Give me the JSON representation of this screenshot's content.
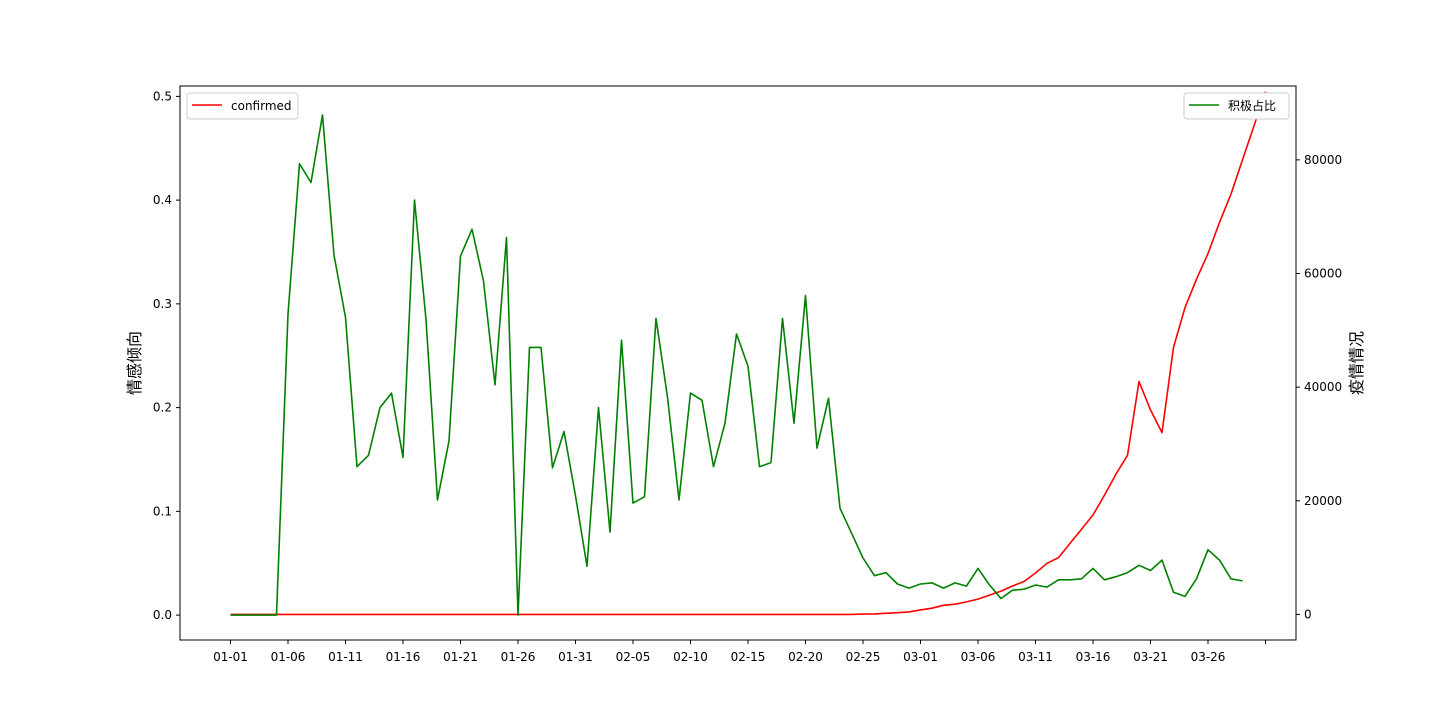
{
  "chart_data": {
    "type": "line",
    "x_tick_labels": [
      "01-01",
      "01-06",
      "01-11",
      "01-16",
      "01-21",
      "01-26",
      "01-31",
      "02-05",
      "02-10",
      "02-15",
      "02-20",
      "02-25",
      "03-01",
      "03-06",
      "03-11",
      "03-16",
      "03-21",
      "03-26"
    ],
    "y_left": {
      "label": "情感倾向",
      "lim": [
        -0.024,
        0.51
      ],
      "ticks": [
        "0.0",
        "0.1",
        "0.2",
        "0.3",
        "0.4",
        "0.5"
      ]
    },
    "y_right": {
      "label": "疫情情况",
      "lim": [
        -4500,
        93000
      ],
      "ticks": [
        "0",
        "20000",
        "40000",
        "60000",
        "80000"
      ]
    },
    "series": [
      {
        "name": "confirmed",
        "axis": "right",
        "color": "#ff0000",
        "values": [
          0,
          0,
          0,
          0,
          0,
          0,
          0,
          0,
          0,
          0,
          0,
          0,
          0,
          0,
          0,
          0,
          0,
          0,
          0,
          0,
          0,
          0,
          0,
          0,
          0,
          0,
          0,
          0,
          0,
          0,
          0,
          0,
          0,
          0,
          0,
          0,
          0,
          0,
          0,
          0,
          0,
          0,
          0,
          0,
          0,
          0,
          0,
          0,
          0,
          0,
          0,
          0,
          0,
          0,
          0,
          50,
          100,
          200,
          300,
          450,
          800,
          1100,
          1600,
          1800,
          2200,
          2700,
          3400,
          4100,
          5000,
          5800,
          7300,
          9000,
          10000,
          12500,
          15000,
          17500,
          21000,
          24700,
          28000,
          41000,
          36000,
          32000,
          47000,
          54000,
          59000,
          63500,
          69000,
          74000,
          80000,
          86000,
          92000
        ]
      },
      {
        "name": "积极占比",
        "axis": "left",
        "color": "#008000",
        "values": [
          0,
          0,
          0,
          0,
          0,
          0.29,
          0.435,
          0.417,
          0.482,
          0.347,
          0.287,
          0.143,
          0.154,
          0.2,
          0.214,
          0.152,
          0.4,
          0.285,
          0.111,
          0.168,
          0.346,
          0.372,
          0.322,
          0.222,
          0.364,
          0,
          0.258,
          0.258,
          0.142,
          0.177,
          0.115,
          0.047,
          0.2,
          0.08,
          0.265,
          0.108,
          0.114,
          0.286,
          0.21,
          0.111,
          0.214,
          0.207,
          0.143,
          0.185,
          0.271,
          0.24,
          0.143,
          0.147,
          0.286,
          0.185,
          0.308,
          0.161,
          0.209,
          0.103,
          0.079,
          0.055,
          0.038,
          0.041,
          0.03,
          0.026,
          0.03,
          0.031,
          0.026,
          0.031,
          0.028,
          0.045,
          0.029,
          0.016,
          0.024,
          0.025,
          0.029,
          0.027,
          0.034,
          0.034,
          0.035,
          0.045,
          0.034,
          0.037,
          0.041,
          0.048,
          0.043,
          0.053,
          0.022,
          0.018,
          0.035,
          0.063,
          0.053,
          0.035,
          0.033
        ]
      }
    ],
    "legend": [
      {
        "name": "confirmed",
        "position": "top-left"
      },
      {
        "name": "积极占比",
        "position": "top-right"
      }
    ],
    "grid": false
  }
}
